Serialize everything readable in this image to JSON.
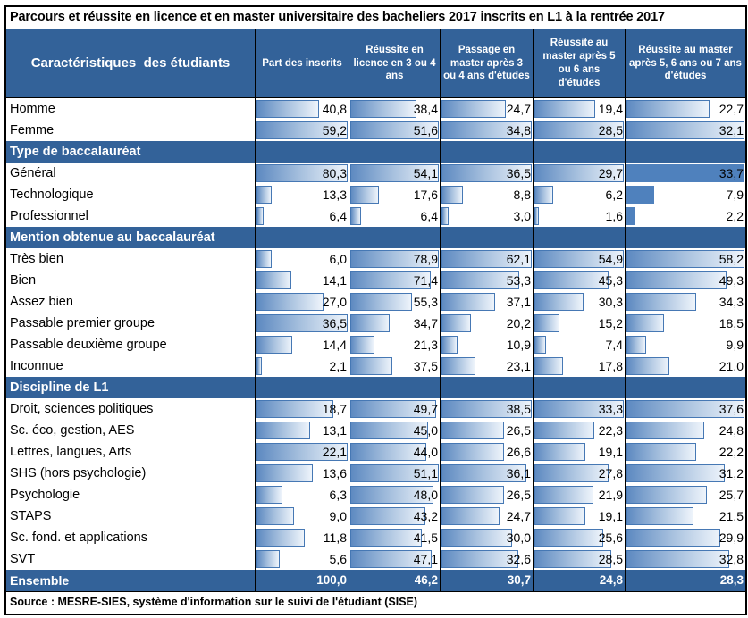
{
  "chart_data": {
    "type": "table",
    "title": "Parcours et réussite en licence et en master universitaire des bacheliers 2017 inscrits en L1 à la rentrée 2017",
    "columns": [
      "Caractéristiques  des étudiants",
      "Part des inscrits",
      "Réussite en licence en 3 ou 4 ans",
      "Passage en master après 3 ou 4 ans d'études",
      "Réussite au master après 5 ou 6 ans d'études",
      "Réussite au master après 5, 6 ans ou 7 ans d'études"
    ],
    "bar_scaling_note": "bars are scaled to the maximum value of each column within each section",
    "sections": [
      {
        "header": null,
        "solid_last_column": false,
        "rows": [
          {
            "label": "Homme",
            "values": [
              "40,8",
              "38,4",
              "24,7",
              "19,4",
              "22,7"
            ]
          },
          {
            "label": "Femme",
            "values": [
              "59,2",
              "51,6",
              "34,8",
              "28,5",
              "32,1"
            ]
          }
        ]
      },
      {
        "header": "Type de baccalauréat",
        "solid_last_column": true,
        "rows": [
          {
            "label": "Général",
            "values": [
              "80,3",
              "54,1",
              "36,5",
              "29,7",
              "33,7"
            ]
          },
          {
            "label": "Technologique",
            "values": [
              "13,3",
              "17,6",
              "8,8",
              "6,2",
              "7,9"
            ]
          },
          {
            "label": "Professionnel",
            "values": [
              "6,4",
              "6,4",
              "3,0",
              "1,6",
              "2,2"
            ]
          }
        ]
      },
      {
        "header": "Mention obtenue au baccalauréat",
        "solid_last_column": false,
        "rows": [
          {
            "label": "Très bien",
            "values": [
              "6,0",
              "78,9",
              "62,1",
              "54,9",
              "58,2"
            ]
          },
          {
            "label": "Bien",
            "values": [
              "14,1",
              "71,4",
              "53,3",
              "45,3",
              "49,3"
            ]
          },
          {
            "label": "Assez bien",
            "values": [
              "27,0",
              "55,3",
              "37,1",
              "30,3",
              "34,3"
            ]
          },
          {
            "label": "Passable premier groupe",
            "values": [
              "36,5",
              "34,7",
              "20,2",
              "15,2",
              "18,5"
            ]
          },
          {
            "label": "Passable deuxième groupe",
            "values": [
              "14,4",
              "21,3",
              "10,9",
              "7,4",
              "9,9"
            ]
          },
          {
            "label": "Inconnue",
            "values": [
              "2,1",
              "37,5",
              "23,1",
              "17,8",
              "21,0"
            ]
          }
        ]
      },
      {
        "header": "Discipline de L1",
        "solid_last_column": false,
        "rows": [
          {
            "label": "Droit, sciences politiques",
            "values": [
              "18,7",
              "49,7",
              "38,5",
              "33,3",
              "37,6"
            ]
          },
          {
            "label": "Sc. éco, gestion, AES",
            "values": [
              "13,1",
              "45,0",
              "26,5",
              "22,3",
              "24,8"
            ]
          },
          {
            "label": "Lettres, langues, Arts",
            "values": [
              "22,1",
              "44,0",
              "26,6",
              "19,1",
              "22,2"
            ]
          },
          {
            "label": "SHS (hors psychologie)",
            "values": [
              "13,6",
              "51,1",
              "36,1",
              "27,8",
              "31,2"
            ]
          },
          {
            "label": "Psychologie",
            "values": [
              "6,3",
              "48,0",
              "26,5",
              "21,9",
              "25,7"
            ]
          },
          {
            "label": "STAPS",
            "values": [
              "9,0",
              "43,2",
              "24,7",
              "19,1",
              "21,5"
            ]
          },
          {
            "label": "Sc. fond. et applications",
            "values": [
              "11,8",
              "41,5",
              "30,0",
              "25,6",
              "29,9"
            ]
          },
          {
            "label": "SVT",
            "values": [
              "5,6",
              "47,1",
              "32,6",
              "28,5",
              "32,8"
            ]
          }
        ]
      }
    ],
    "ensemble": {
      "label": "Ensemble",
      "values": [
        "100,0",
        "46,2",
        "30,7",
        "24,8",
        "28,3"
      ]
    },
    "source": "Source : MESRE-SIES, système d'information sur le suivi de l'étudiant (SISE)",
    "colors": {
      "band_blue": "#336299",
      "bar_border": "#4678b4",
      "bar_gradient_start": "#5e8ac1",
      "bar_gradient_end": "#eef4fb",
      "bar_solid": "#4f81bd",
      "grid_line": "#000000"
    }
  }
}
